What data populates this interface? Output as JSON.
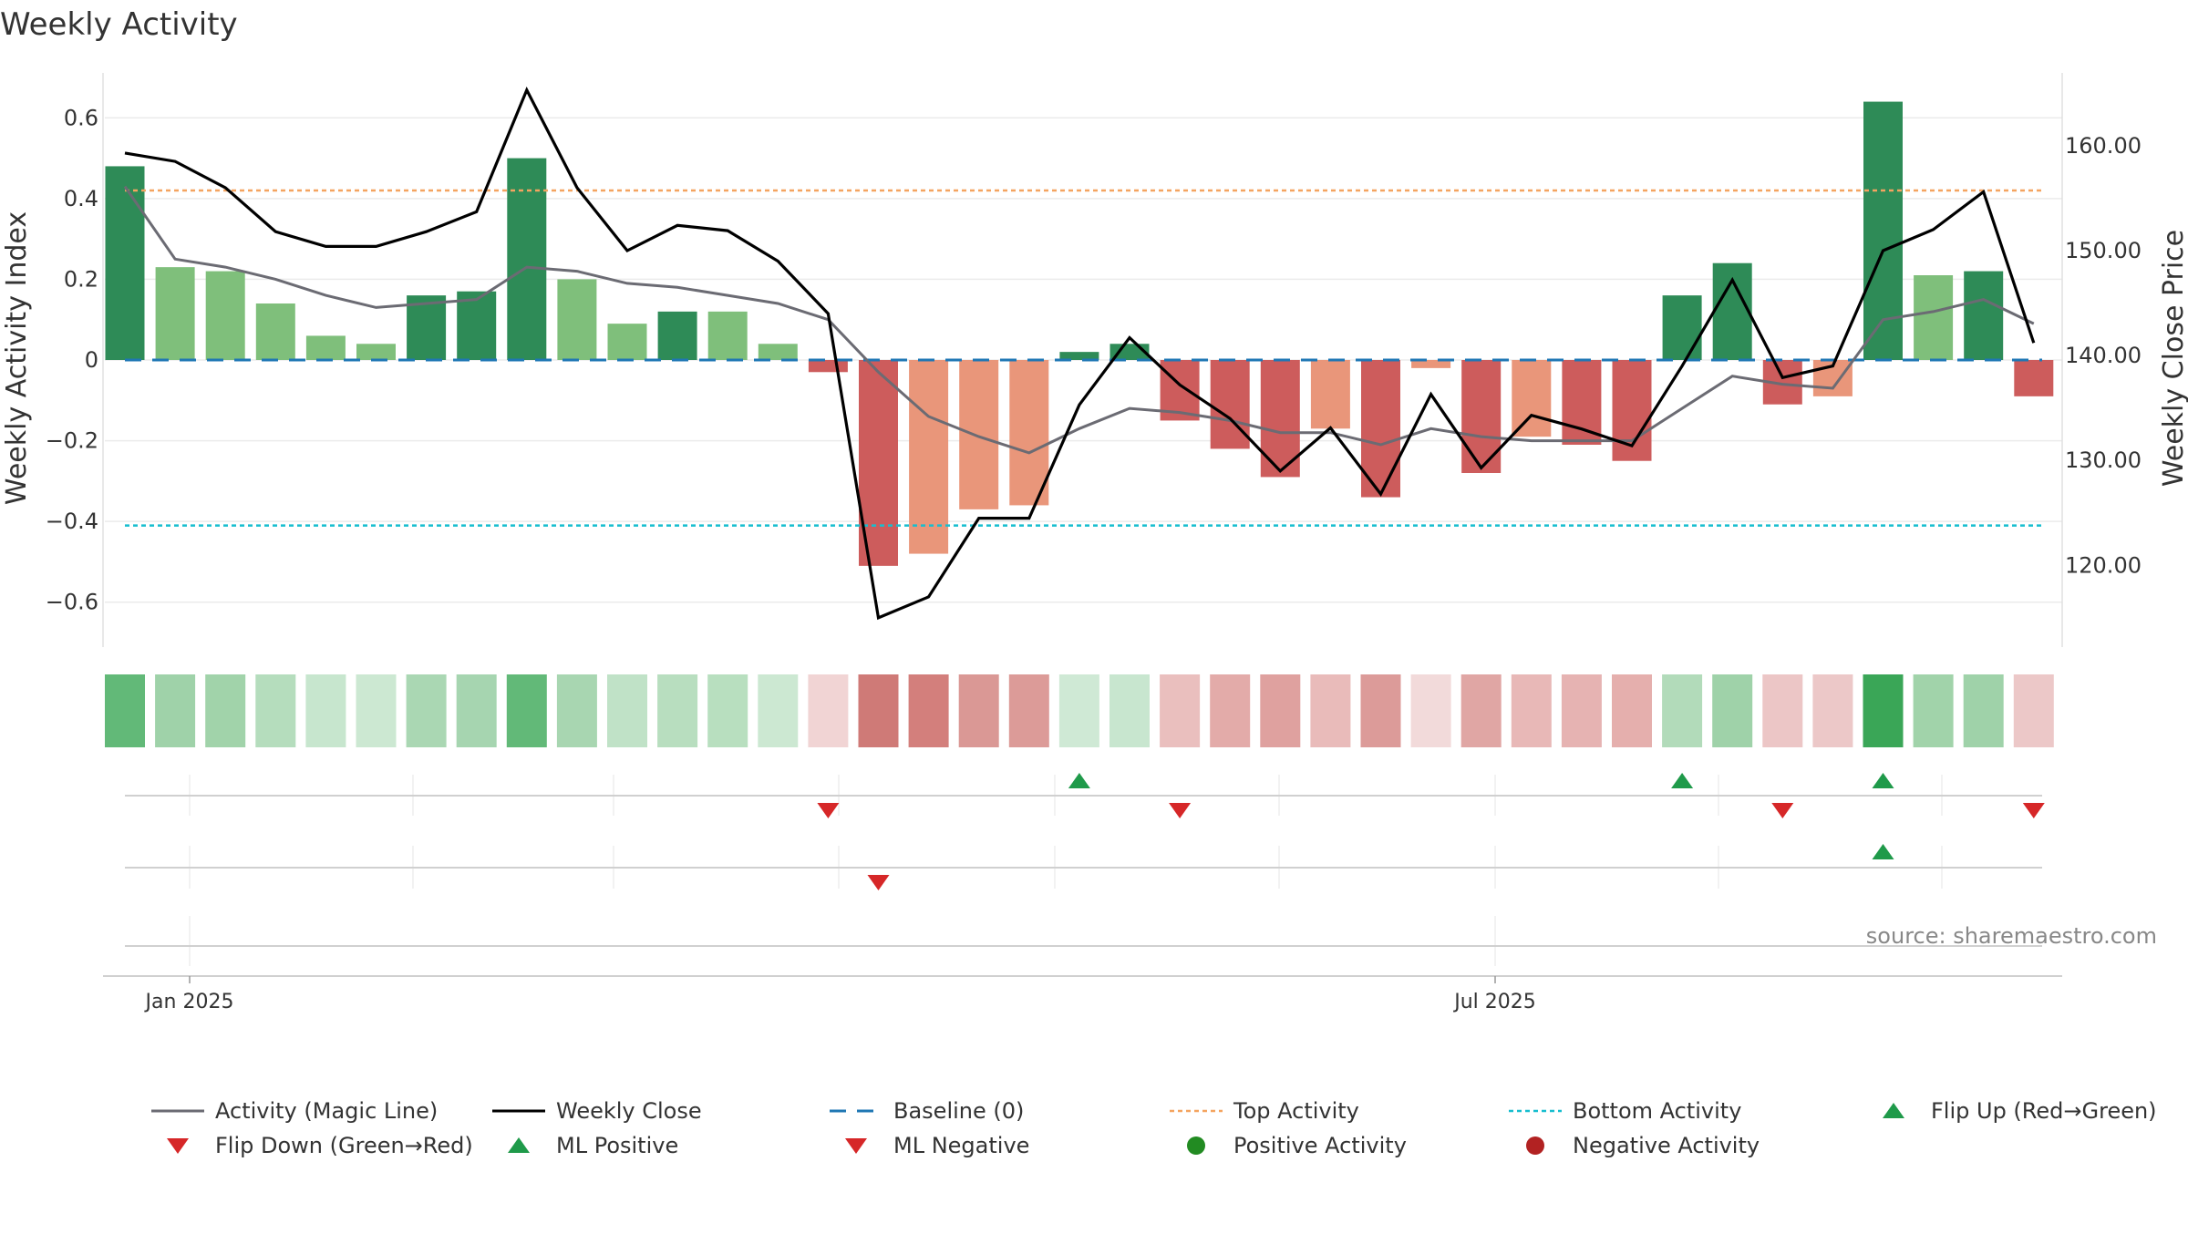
{
  "chart_data": {
    "type": "bar",
    "title": "Weekly Activity",
    "ylabel_left": "Weekly Activity Index",
    "ylabel_right": "Weekly Close Price",
    "source": "source: sharemaestro.com",
    "left_axis": {
      "ylim": [
        -0.7,
        0.7
      ],
      "ticks": [
        0.6,
        0.4,
        0.2,
        0,
        -0.2,
        -0.4,
        -0.6
      ],
      "tick_labels": [
        "0.6",
        "0.4",
        "0.2",
        "0",
        "−0.2",
        "−0.4",
        "−0.6"
      ]
    },
    "right_axis": {
      "ylim": [
        112.65,
        166.5
      ],
      "ticks": [
        160,
        150,
        140,
        130,
        120
      ],
      "tick_labels": [
        "160.00",
        "150.00",
        "140.00",
        "130.00",
        "120.00"
      ]
    },
    "x_tick_labels": [
      "Jan 2025",
      "Jul 2025"
    ],
    "grid": true,
    "legend_position": "bottom",
    "weeks": 39,
    "activity": [
      0.48,
      0.23,
      0.22,
      0.14,
      0.06,
      0.04,
      0.16,
      0.17,
      0.5,
      0.2,
      0.09,
      0.12,
      0.12,
      0.04,
      -0.03,
      -0.51,
      -0.48,
      -0.37,
      -0.36,
      0.02,
      0.04,
      -0.15,
      -0.22,
      -0.29,
      -0.17,
      -0.34,
      -0.02,
      -0.28,
      -0.19,
      -0.21,
      -0.25,
      0.16,
      0.24,
      -0.11,
      -0.09,
      0.64,
      0.21,
      0.22,
      -0.09
    ],
    "bar_colors": [
      "#2e8b57",
      "#7fbf7b",
      "#7fbf7b",
      "#7fbf7b",
      "#7fbf7b",
      "#7fbf7b",
      "#2e8b57",
      "#2e8b57",
      "#2e8b57",
      "#7fbf7b",
      "#7fbf7b",
      "#2e8b57",
      "#7fbf7b",
      "#7fbf7b",
      "#cd5c5c",
      "#cd5c5c",
      "#e9967a",
      "#e9967a",
      "#e9967a",
      "#2e8b57",
      "#2e8b57",
      "#cd5c5c",
      "#cd5c5c",
      "#cd5c5c",
      "#e9967a",
      "#cd5c5c",
      "#e9967a",
      "#cd5c5c",
      "#e9967a",
      "#cd5c5c",
      "#cd5c5c",
      "#2e8b57",
      "#2e8b57",
      "#cd5c5c",
      "#e9967a",
      "#2e8b57",
      "#7fbf7b",
      "#2e8b57",
      "#cd5c5c"
    ],
    "magic_line": [
      0.43,
      0.25,
      0.23,
      0.2,
      0.16,
      0.13,
      0.14,
      0.15,
      0.23,
      0.22,
      0.19,
      0.18,
      0.16,
      0.14,
      0.1,
      -0.03,
      -0.14,
      -0.19,
      -0.23,
      -0.17,
      -0.12,
      -0.13,
      -0.15,
      -0.18,
      -0.18,
      -0.21,
      -0.17,
      -0.19,
      -0.2,
      -0.2,
      -0.2,
      -0.12,
      -0.04,
      -0.06,
      -0.07,
      0.1,
      0.12,
      0.15,
      0.09
    ],
    "weekly_close": [
      159.3,
      158.5,
      156.0,
      151.8,
      150.4,
      150.4,
      151.8,
      153.7,
      165.3,
      156.0,
      150.0,
      152.4,
      151.9,
      149.0,
      144.0,
      115.0,
      117.0,
      124.5,
      124.5,
      135.3,
      141.7,
      137.2,
      134.0,
      129.0,
      133.1,
      126.8,
      136.3,
      129.3,
      134.3,
      133.0,
      131.4,
      139.0,
      147.2,
      137.9,
      139.0,
      150.0,
      152.0,
      155.6,
      141.2
    ],
    "tile_colors": [
      "#62b978",
      "#9fd2a9",
      "#a1d3aa",
      "#b5ddbd",
      "#c7e6ce",
      "#cce8d2",
      "#aad7b3",
      "#a6d5b0",
      "#62b978",
      "#a8d6b1",
      "#c0e2c7",
      "#b8deBf",
      "#b8dfbf",
      "#cce8d2",
      "#f1d4d4",
      "#cf7a77",
      "#d37f7c",
      "#da9895",
      "#dc9b98",
      "#cfe9d5",
      "#c8e6cf",
      "#eabfbe",
      "#e3aba9",
      "#dfa19f",
      "#e9bbba",
      "#dc9b99",
      "#f2dada",
      "#e0a6a4",
      "#e8b8b7",
      "#e6b3b2",
      "#e5afad",
      "#b2dbba",
      "#9fd2a9",
      "#ecc6c6",
      "#ecc8c8",
      "#3aa657",
      "#a1d3aa",
      "#9fd2a9",
      "#ecc8c8"
    ],
    "flip_up_weeks": [
      19,
      31,
      35
    ],
    "flip_down_weeks": [
      14,
      21,
      33,
      38
    ],
    "ml_positive_weeks": [
      35
    ],
    "ml_negative_weeks": [
      15
    ],
    "top_activity": 0.42,
    "bottom_activity": -0.41,
    "colors": {
      "pos_strong": "#2e8b57",
      "pos_light": "#7fbf7b",
      "neg_strong": "#cd5c5c",
      "neg_light": "#e9967a",
      "magic_line": "#6b6b73",
      "close_line": "#000000",
      "baseline": "#1f77b4",
      "top_line": "#f4a460",
      "bottom_line": "#17becf",
      "marker_up": "#1f9a4a",
      "marker_down": "#d62728",
      "pos_dot": "#228b22",
      "neg_dot": "#b22222"
    },
    "legend": [
      {
        "label": "Activity (Magic Line)",
        "kind": "line",
        "color": "#6b6b73"
      },
      {
        "label": "Weekly Close",
        "kind": "line",
        "color": "#000000"
      },
      {
        "label": "Baseline (0)",
        "kind": "dash",
        "color": "#1f77b4"
      },
      {
        "label": "Top Activity",
        "kind": "dot",
        "color": "#f4a460"
      },
      {
        "label": "Bottom Activity",
        "kind": "dot",
        "color": "#17becf"
      },
      {
        "label": "Flip Up (Red→Green)",
        "kind": "tri-up",
        "color": "#1f9a4a"
      },
      {
        "label": "Flip Down (Green→Red)",
        "kind": "tri-down",
        "color": "#d62728"
      },
      {
        "label": "ML Positive",
        "kind": "tri-up",
        "color": "#1f9a4a"
      },
      {
        "label": "ML Negative",
        "kind": "tri-down",
        "color": "#d62728"
      },
      {
        "label": "Positive Activity",
        "kind": "circle",
        "color": "#228b22"
      },
      {
        "label": "Negative Activity",
        "kind": "circle",
        "color": "#b22222"
      }
    ]
  }
}
